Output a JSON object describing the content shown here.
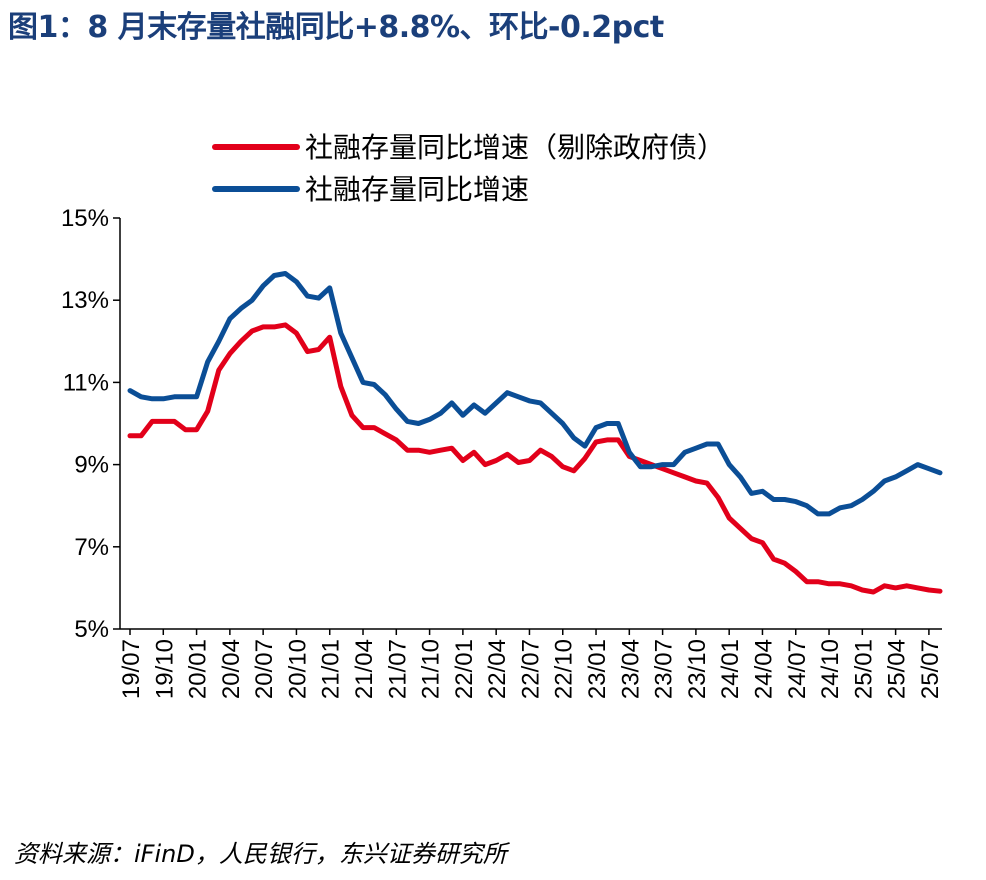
{
  "title": "图1：8 月末存量社融同比+8.8%、环比-0.2pct",
  "source": "资料来源：iFinD，人民银行，东兴证券研究所",
  "chart_data": {
    "type": "line",
    "ylim": [
      5,
      15
    ],
    "y_ticks": [
      "5%",
      "7%",
      "9%",
      "11%",
      "13%",
      "15%"
    ],
    "y_tick_values": [
      5,
      7,
      9,
      11,
      13,
      15
    ],
    "x_tick_labels": [
      "19/07",
      "19/10",
      "20/01",
      "20/04",
      "20/07",
      "20/10",
      "21/01",
      "21/04",
      "21/07",
      "21/10",
      "22/01",
      "22/04",
      "22/07",
      "22/10",
      "23/01",
      "23/04",
      "23/07",
      "23/10",
      "24/01",
      "24/04",
      "24/07",
      "24/10",
      "25/01",
      "25/04",
      "25/07"
    ],
    "x": [
      "19/07",
      "19/08",
      "19/09",
      "19/10",
      "19/11",
      "19/12",
      "20/01",
      "20/02",
      "20/03",
      "20/04",
      "20/05",
      "20/06",
      "20/07",
      "20/08",
      "20/09",
      "20/10",
      "20/11",
      "20/12",
      "21/01",
      "21/02",
      "21/03",
      "21/04",
      "21/05",
      "21/06",
      "21/07",
      "21/08",
      "21/09",
      "21/10",
      "21/11",
      "21/12",
      "22/01",
      "22/02",
      "22/03",
      "22/04",
      "22/05",
      "22/06",
      "22/07",
      "22/08",
      "22/09",
      "22/10",
      "22/11",
      "22/12",
      "23/01",
      "23/02",
      "23/03",
      "23/04",
      "23/05",
      "23/06",
      "23/07",
      "23/08",
      "23/09",
      "23/10",
      "23/11",
      "23/12",
      "24/01",
      "24/02",
      "24/03",
      "24/04",
      "24/05",
      "24/06",
      "24/07",
      "24/08",
      "24/09",
      "24/10",
      "24/11",
      "24/12",
      "25/01",
      "25/02",
      "25/03",
      "25/04",
      "25/05",
      "25/06",
      "25/07",
      "25/08"
    ],
    "series": [
      {
        "name": "社融存量同比增速（剔除政府债）",
        "color": "#e2001a",
        "values": [
          9.7,
          9.7,
          10.05,
          10.05,
          10.05,
          9.85,
          9.85,
          10.3,
          11.3,
          11.7,
          12.0,
          12.25,
          12.35,
          12.35,
          12.4,
          12.2,
          11.75,
          11.8,
          12.1,
          10.9,
          10.2,
          9.9,
          9.9,
          9.75,
          9.6,
          9.35,
          9.35,
          9.3,
          9.35,
          9.4,
          9.1,
          9.3,
          9.0,
          9.1,
          9.25,
          9.05,
          9.1,
          9.35,
          9.2,
          8.95,
          8.85,
          9.15,
          9.55,
          9.6,
          9.6,
          9.2,
          9.1,
          9.0,
          8.9,
          8.8,
          8.7,
          8.6,
          8.55,
          8.2,
          7.7,
          7.45,
          7.2,
          7.1,
          6.7,
          6.6,
          6.4,
          6.15,
          6.15,
          6.1,
          6.1,
          6.05,
          5.95,
          5.9,
          6.05,
          6.0,
          6.05,
          6.0,
          5.95,
          5.92
        ]
      },
      {
        "name": "社融存量同比增速",
        "color": "#0b4e96",
        "values": [
          10.8,
          10.65,
          10.6,
          10.6,
          10.65,
          10.65,
          10.65,
          11.5,
          12.0,
          12.55,
          12.8,
          13.0,
          13.35,
          13.6,
          13.65,
          13.45,
          13.1,
          13.05,
          13.3,
          12.2,
          11.6,
          11.0,
          10.95,
          10.7,
          10.35,
          10.05,
          10.0,
          10.1,
          10.25,
          10.5,
          10.2,
          10.45,
          10.25,
          10.5,
          10.75,
          10.65,
          10.55,
          10.5,
          10.25,
          10.0,
          9.65,
          9.45,
          9.9,
          10.0,
          10.0,
          9.3,
          8.95,
          8.95,
          9.0,
          9.0,
          9.3,
          9.4,
          9.5,
          9.5,
          9.0,
          8.7,
          8.3,
          8.35,
          8.15,
          8.15,
          8.1,
          8.0,
          7.8,
          7.8,
          7.95,
          8.0,
          8.15,
          8.35,
          8.6,
          8.7,
          8.85,
          9.0,
          8.9,
          8.8
        ]
      }
    ]
  }
}
